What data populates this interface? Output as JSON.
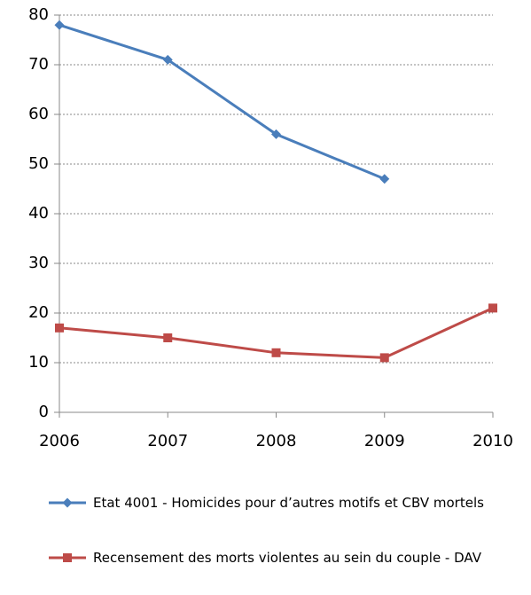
{
  "chart_data": {
    "type": "line",
    "categories": [
      "2006",
      "2007",
      "2008",
      "2009",
      "2010"
    ],
    "series": [
      {
        "name": "Etat 4001 - Homicides pour d’autres motifs et CBV mortels",
        "color": "#4a7ebb",
        "marker": "diamond",
        "values": [
          78,
          71,
          56,
          47,
          null
        ]
      },
      {
        "name": "Recensement des morts violentes au sein du couple - DAV",
        "color": "#be4b48",
        "marker": "square",
        "values": [
          17,
          15,
          12,
          11,
          21
        ]
      }
    ],
    "ylim": [
      0,
      80
    ],
    "yticks": [
      0,
      10,
      20,
      30,
      40,
      50,
      60,
      70,
      80
    ],
    "grid": true,
    "legend": "bottom"
  }
}
